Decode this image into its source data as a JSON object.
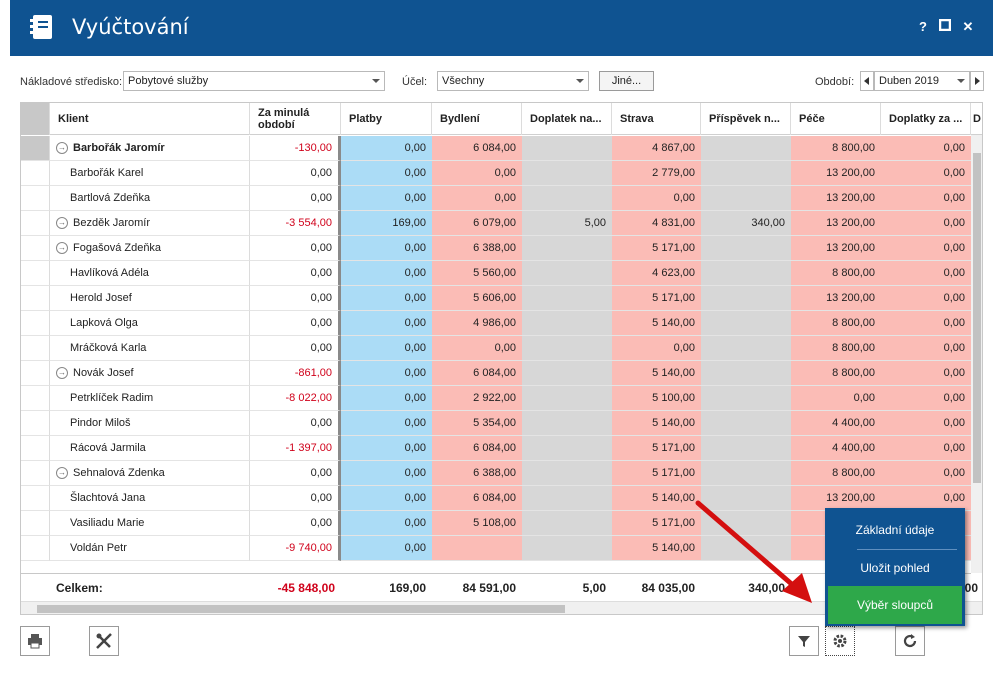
{
  "window": {
    "title": "Vyúčtování",
    "help_btn": "?",
    "max_btn": "■",
    "close_btn": "✕"
  },
  "filters": {
    "cost_center_label": "Nákladové středisko:",
    "cost_center_value": "Pobytové služby",
    "purpose_label": "Účel:",
    "purpose_value": "Všechny",
    "other_button": "Jiné...",
    "period_label": "Období:",
    "period_value": "Duben 2019"
  },
  "grid": {
    "columns": [
      "Klient",
      "Za minulá období",
      "Platby",
      "Bydlení",
      "Doplatek na...",
      "Strava",
      "Příspěvek n...",
      "Péče",
      "Doplatky za ...",
      "D"
    ],
    "rows": [
      {
        "name": "Barbořák Jaromír",
        "bold": true,
        "exp": true,
        "prev": "-130,00",
        "plat": "0,00",
        "byd": "6 084,00",
        "dop": "",
        "str": "4 867,00",
        "pri": "",
        "pece": "8 800,00",
        "dopz": "0,00"
      },
      {
        "name": "Barbořák Karel",
        "prev": "0,00",
        "plat": "0,00",
        "byd": "0,00",
        "dop": "",
        "str": "2 779,00",
        "pri": "",
        "pece": "13 200,00",
        "dopz": "0,00"
      },
      {
        "name": "Bartlová Zdeňka",
        "prev": "0,00",
        "plat": "0,00",
        "byd": "0,00",
        "dop": "",
        "str": "0,00",
        "pri": "",
        "pece": "13 200,00",
        "dopz": "0,00"
      },
      {
        "name": "Bezděk Jaromír",
        "exp": true,
        "prev": "-3 554,00",
        "plat": "169,00",
        "byd": "6 079,00",
        "dop": "5,00",
        "str": "4 831,00",
        "pri": "340,00",
        "pece": "13 200,00",
        "dopz": "0,00"
      },
      {
        "name": "Fogašová Zdeňka",
        "exp": true,
        "prev": "0,00",
        "plat": "0,00",
        "byd": "6 388,00",
        "dop": "",
        "str": "5 171,00",
        "pri": "",
        "pece": "13 200,00",
        "dopz": "0,00"
      },
      {
        "name": "Havlíková Adéla",
        "prev": "0,00",
        "plat": "0,00",
        "byd": "5 560,00",
        "dop": "",
        "str": "4 623,00",
        "pri": "",
        "pece": "8 800,00",
        "dopz": "0,00"
      },
      {
        "name": "Herold Josef",
        "prev": "0,00",
        "plat": "0,00",
        "byd": "5 606,00",
        "dop": "",
        "str": "5 171,00",
        "pri": "",
        "pece": "13 200,00",
        "dopz": "0,00"
      },
      {
        "name": "Lapková Olga",
        "prev": "0,00",
        "plat": "0,00",
        "byd": "4 986,00",
        "dop": "",
        "str": "5 140,00",
        "pri": "",
        "pece": "8 800,00",
        "dopz": "0,00"
      },
      {
        "name": "Mráčková Karla",
        "prev": "0,00",
        "plat": "0,00",
        "byd": "0,00",
        "dop": "",
        "str": "0,00",
        "pri": "",
        "pece": "8 800,00",
        "dopz": "0,00"
      },
      {
        "name": "Novák Josef",
        "exp": true,
        "prev": "-861,00",
        "plat": "0,00",
        "byd": "6 084,00",
        "dop": "",
        "str": "5 140,00",
        "pri": "",
        "pece": "8 800,00",
        "dopz": "0,00"
      },
      {
        "name": "Petrklíček Radim",
        "prev": "-8 022,00",
        "plat": "0,00",
        "byd": "2 922,00",
        "dop": "",
        "str": "5 100,00",
        "pri": "",
        "pece": "0,00",
        "dopz": "0,00"
      },
      {
        "name": "Pindor Miloš",
        "prev": "0,00",
        "plat": "0,00",
        "byd": "5 354,00",
        "dop": "",
        "str": "5 140,00",
        "pri": "",
        "pece": "4 400,00",
        "dopz": "0,00"
      },
      {
        "name": "Rácová Jarmila",
        "prev": "-1 397,00",
        "plat": "0,00",
        "byd": "6 084,00",
        "dop": "",
        "str": "5 171,00",
        "pri": "",
        "pece": "4 400,00",
        "dopz": "0,00"
      },
      {
        "name": "Sehnalová Zdenka",
        "exp": true,
        "prev": "0,00",
        "plat": "0,00",
        "byd": "6 388,00",
        "dop": "",
        "str": "5 171,00",
        "pri": "",
        "pece": "8 800,00",
        "dopz": "0,00"
      },
      {
        "name": "Šlachtová Jana",
        "prev": "0,00",
        "plat": "0,00",
        "byd": "6 084,00",
        "dop": "",
        "str": "5 140,00",
        "pri": "",
        "pece": "13 200,00",
        "dopz": "0,00"
      },
      {
        "name": "Vasiliadu Marie",
        "prev": "0,00",
        "plat": "0,00",
        "byd": "5 108,00",
        "dop": "",
        "str": "5 171,00",
        "pri": "",
        "pece": "",
        "dopz": ""
      },
      {
        "name": "Voldán Petr",
        "prev": "-9 740,00",
        "plat": "0,00",
        "byd": "",
        "dop": "",
        "str": "5 140,00",
        "pri": "",
        "pece": "",
        "dopz": ""
      }
    ],
    "totals": {
      "label": "Celkem:",
      "prev": "-45 848,00",
      "plat": "169,00",
      "byd": "84 591,00",
      "dop": "5,00",
      "str": "84 035,00",
      "pri": "340,00",
      "pece": "1",
      "dopz": "00"
    }
  },
  "menu": {
    "items": [
      "Základní údaje",
      "Uložit pohled",
      "Výběr sloupců"
    ]
  },
  "colors": {
    "title_bg": "#0f5391",
    "blue": "#abdcf6",
    "pink": "#fbbcb6",
    "gray": "#d7d7d7",
    "menu_active": "#2ea84a"
  }
}
